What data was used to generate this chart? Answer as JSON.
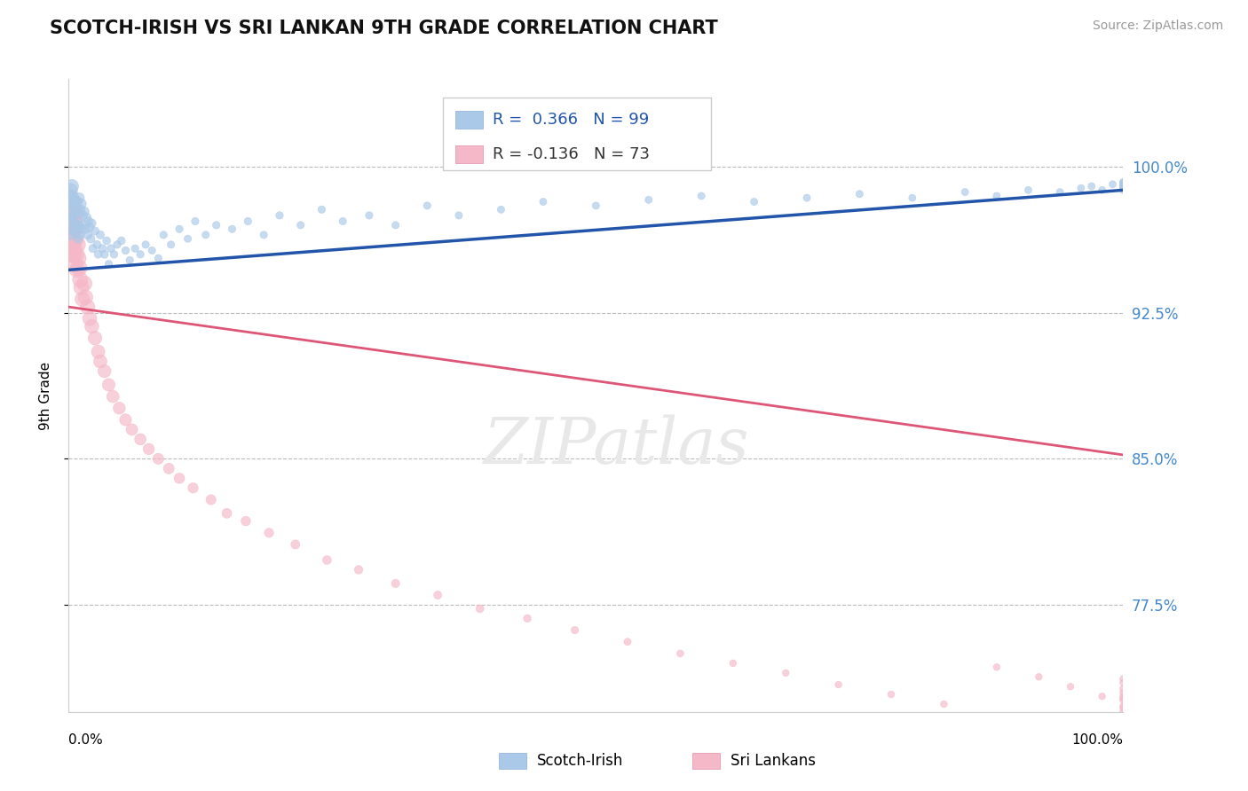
{
  "title": "SCOTCH-IRISH VS SRI LANKAN 9TH GRADE CORRELATION CHART",
  "source_text": "Source: ZipAtlas.com",
  "ylabel": "9th Grade",
  "R_scotch": 0.366,
  "N_scotch": 99,
  "R_sri": -0.136,
  "N_sri": 73,
  "blue_color": "#aac8e8",
  "pink_color": "#f5b8c8",
  "blue_line_color": "#2255aa",
  "pink_line_color": "#dd5577",
  "tick_color": "#4488cc",
  "yticks": [
    0.775,
    0.85,
    0.925,
    1.0
  ],
  "ytick_labels": [
    "77.5%",
    "85.0%",
    "92.5%",
    "100.0%"
  ],
  "xlim": [
    0.0,
    1.0
  ],
  "ylim": [
    0.72,
    1.045
  ],
  "scotch_trend_x": [
    0.0,
    1.0
  ],
  "scotch_trend_y": [
    0.947,
    0.988
  ],
  "sri_trend_x": [
    0.0,
    1.0
  ],
  "sri_trend_y": [
    0.928,
    0.852
  ],
  "legend_scotch_irish": "Scotch-Irish",
  "legend_sri_lankans": "Sri Lankans",
  "scotch_x": [
    0.001,
    0.001,
    0.001,
    0.002,
    0.002,
    0.002,
    0.003,
    0.003,
    0.003,
    0.004,
    0.004,
    0.005,
    0.005,
    0.006,
    0.006,
    0.007,
    0.007,
    0.008,
    0.008,
    0.009,
    0.009,
    0.01,
    0.01,
    0.011,
    0.011,
    0.012,
    0.012,
    0.013,
    0.014,
    0.015,
    0.016,
    0.017,
    0.018,
    0.019,
    0.02,
    0.021,
    0.022,
    0.023,
    0.025,
    0.027,
    0.028,
    0.03,
    0.032,
    0.034,
    0.036,
    0.038,
    0.04,
    0.043,
    0.046,
    0.05,
    0.054,
    0.058,
    0.063,
    0.068,
    0.073,
    0.079,
    0.085,
    0.09,
    0.097,
    0.105,
    0.113,
    0.12,
    0.13,
    0.14,
    0.155,
    0.17,
    0.185,
    0.2,
    0.22,
    0.24,
    0.26,
    0.285,
    0.31,
    0.34,
    0.37,
    0.41,
    0.45,
    0.5,
    0.55,
    0.6,
    0.65,
    0.7,
    0.75,
    0.8,
    0.85,
    0.88,
    0.91,
    0.94,
    0.96,
    0.97,
    0.98,
    0.99,
    1.0,
    1.0,
    1.0,
    1.0,
    1.0,
    1.0,
    1.0
  ],
  "scotch_y": [
    0.985,
    0.972,
    0.965,
    0.988,
    0.978,
    0.968,
    0.99,
    0.982,
    0.973,
    0.985,
    0.975,
    0.98,
    0.968,
    0.983,
    0.971,
    0.978,
    0.966,
    0.982,
    0.97,
    0.976,
    0.963,
    0.984,
    0.97,
    0.978,
    0.965,
    0.981,
    0.968,
    0.975,
    0.97,
    0.977,
    0.968,
    0.974,
    0.965,
    0.972,
    0.969,
    0.963,
    0.971,
    0.958,
    0.967,
    0.96,
    0.955,
    0.965,
    0.958,
    0.955,
    0.962,
    0.95,
    0.958,
    0.955,
    0.96,
    0.962,
    0.957,
    0.952,
    0.958,
    0.955,
    0.96,
    0.957,
    0.953,
    0.965,
    0.96,
    0.968,
    0.963,
    0.972,
    0.965,
    0.97,
    0.968,
    0.972,
    0.965,
    0.975,
    0.97,
    0.978,
    0.972,
    0.975,
    0.97,
    0.98,
    0.975,
    0.978,
    0.982,
    0.98,
    0.983,
    0.985,
    0.982,
    0.984,
    0.986,
    0.984,
    0.987,
    0.985,
    0.988,
    0.987,
    0.989,
    0.99,
    0.988,
    0.991,
    0.989,
    0.99,
    0.988,
    0.992,
    0.99,
    0.991,
    0.992
  ],
  "scotch_sizes": [
    120,
    90,
    70,
    120,
    90,
    70,
    120,
    90,
    70,
    80,
    65,
    80,
    65,
    75,
    60,
    70,
    55,
    70,
    55,
    65,
    52,
    70,
    55,
    65,
    52,
    65,
    50,
    60,
    58,
    56,
    54,
    52,
    50,
    48,
    52,
    48,
    46,
    44,
    44,
    42,
    40,
    44,
    42,
    40,
    40,
    38,
    40,
    38,
    38,
    40,
    38,
    36,
    36,
    36,
    36,
    35,
    35,
    36,
    35,
    36,
    35,
    36,
    35,
    36,
    35,
    36,
    35,
    36,
    35,
    36,
    35,
    36,
    35,
    35,
    35,
    34,
    34,
    34,
    34,
    34,
    34,
    34,
    34,
    33,
    33,
    33,
    33,
    33,
    33,
    33,
    33,
    33,
    33,
    33,
    33,
    33,
    33,
    33,
    33
  ],
  "sri_x": [
    0.001,
    0.001,
    0.002,
    0.002,
    0.003,
    0.003,
    0.004,
    0.004,
    0.005,
    0.005,
    0.006,
    0.006,
    0.007,
    0.008,
    0.008,
    0.009,
    0.01,
    0.011,
    0.012,
    0.013,
    0.015,
    0.016,
    0.018,
    0.02,
    0.022,
    0.025,
    0.028,
    0.03,
    0.034,
    0.038,
    0.042,
    0.048,
    0.054,
    0.06,
    0.068,
    0.076,
    0.085,
    0.095,
    0.105,
    0.118,
    0.135,
    0.15,
    0.168,
    0.19,
    0.215,
    0.245,
    0.275,
    0.31,
    0.35,
    0.39,
    0.435,
    0.48,
    0.53,
    0.58,
    0.63,
    0.68,
    0.73,
    0.78,
    0.83,
    0.88,
    0.92,
    0.95,
    0.98,
    1.0,
    1.0,
    1.0,
    1.0,
    1.0,
    1.0,
    1.0,
    1.0,
    1.0,
    1.0
  ],
  "sri_y": [
    0.975,
    0.963,
    0.98,
    0.968,
    0.972,
    0.96,
    0.968,
    0.955,
    0.971,
    0.958,
    0.963,
    0.95,
    0.955,
    0.96,
    0.947,
    0.953,
    0.948,
    0.942,
    0.938,
    0.932,
    0.94,
    0.933,
    0.928,
    0.922,
    0.918,
    0.912,
    0.905,
    0.9,
    0.895,
    0.888,
    0.882,
    0.876,
    0.87,
    0.865,
    0.86,
    0.855,
    0.85,
    0.845,
    0.84,
    0.835,
    0.829,
    0.822,
    0.818,
    0.812,
    0.806,
    0.798,
    0.793,
    0.786,
    0.78,
    0.773,
    0.768,
    0.762,
    0.756,
    0.75,
    0.745,
    0.74,
    0.734,
    0.729,
    0.724,
    0.743,
    0.738,
    0.733,
    0.728,
    0.737,
    0.73,
    0.726,
    0.722,
    0.732,
    0.727,
    0.723,
    0.728,
    0.72,
    0.735
  ],
  "sri_sizes": [
    350,
    280,
    300,
    240,
    260,
    210,
    230,
    185,
    210,
    175,
    195,
    160,
    175,
    185,
    155,
    168,
    165,
    155,
    148,
    140,
    150,
    142,
    138,
    132,
    128,
    122,
    118,
    115,
    110,
    105,
    100,
    96,
    92,
    88,
    85,
    82,
    78,
    75,
    72,
    68,
    65,
    62,
    58,
    55,
    52,
    50,
    47,
    44,
    42,
    40,
    38,
    36,
    34,
    32,
    30,
    30,
    30,
    30,
    30,
    30,
    30,
    30,
    30,
    30,
    30,
    30,
    30,
    30,
    30,
    30,
    30,
    30,
    30
  ]
}
